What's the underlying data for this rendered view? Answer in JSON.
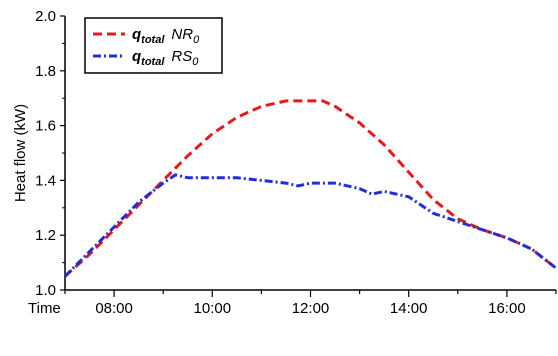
{
  "chart_data": {
    "type": "line",
    "ylabel": "Heat flow (kW)",
    "xlabel": "Time",
    "xlim": [
      7.0,
      17.0
    ],
    "ylim": [
      1.0,
      2.0
    ],
    "x_ticks": [
      8,
      10,
      12,
      14,
      16
    ],
    "x_tick_labels": [
      "08:00",
      "10:00",
      "12:00",
      "14:00",
      "16:00"
    ],
    "y_ticks": [
      1.0,
      1.2,
      1.4,
      1.6,
      1.8,
      2.0
    ],
    "y_tick_labels": [
      "1.0",
      "1.2",
      "1.4",
      "1.6",
      "1.8",
      "2.0"
    ],
    "legend_position": "top-left",
    "series": [
      {
        "name": "q_total NR_0",
        "label_main": "q",
        "label_sub": "total",
        "label_suffix": "NR",
        "label_suffix_sub": "0",
        "color": "#e41a1c",
        "dash": "dashed",
        "x": [
          7.0,
          7.5,
          8.0,
          8.5,
          9.0,
          9.5,
          10.0,
          10.5,
          11.0,
          11.5,
          12.0,
          12.25,
          12.5,
          13.0,
          13.5,
          14.0,
          14.5,
          15.0,
          15.5,
          16.0,
          16.5,
          17.0
        ],
        "y": [
          1.05,
          1.13,
          1.22,
          1.31,
          1.4,
          1.49,
          1.57,
          1.63,
          1.67,
          1.69,
          1.69,
          1.69,
          1.67,
          1.61,
          1.53,
          1.43,
          1.33,
          1.26,
          1.22,
          1.19,
          1.15,
          1.08
        ]
      },
      {
        "name": "q_total RS_0",
        "label_main": "q",
        "label_sub": "total",
        "label_suffix": "RS",
        "label_suffix_sub": "0",
        "color": "#1f2fd6",
        "dash": "dashdot",
        "x": [
          7.0,
          7.5,
          8.0,
          8.5,
          9.0,
          9.25,
          9.5,
          10.0,
          10.5,
          11.0,
          11.5,
          11.75,
          12.0,
          12.5,
          13.0,
          13.25,
          13.5,
          14.0,
          14.5,
          15.0,
          15.5,
          16.0,
          16.5,
          17.0
        ],
        "y": [
          1.05,
          1.14,
          1.23,
          1.32,
          1.39,
          1.42,
          1.41,
          1.41,
          1.41,
          1.4,
          1.39,
          1.38,
          1.39,
          1.39,
          1.37,
          1.35,
          1.36,
          1.34,
          1.28,
          1.25,
          1.22,
          1.19,
          1.15,
          1.08
        ]
      }
    ]
  }
}
